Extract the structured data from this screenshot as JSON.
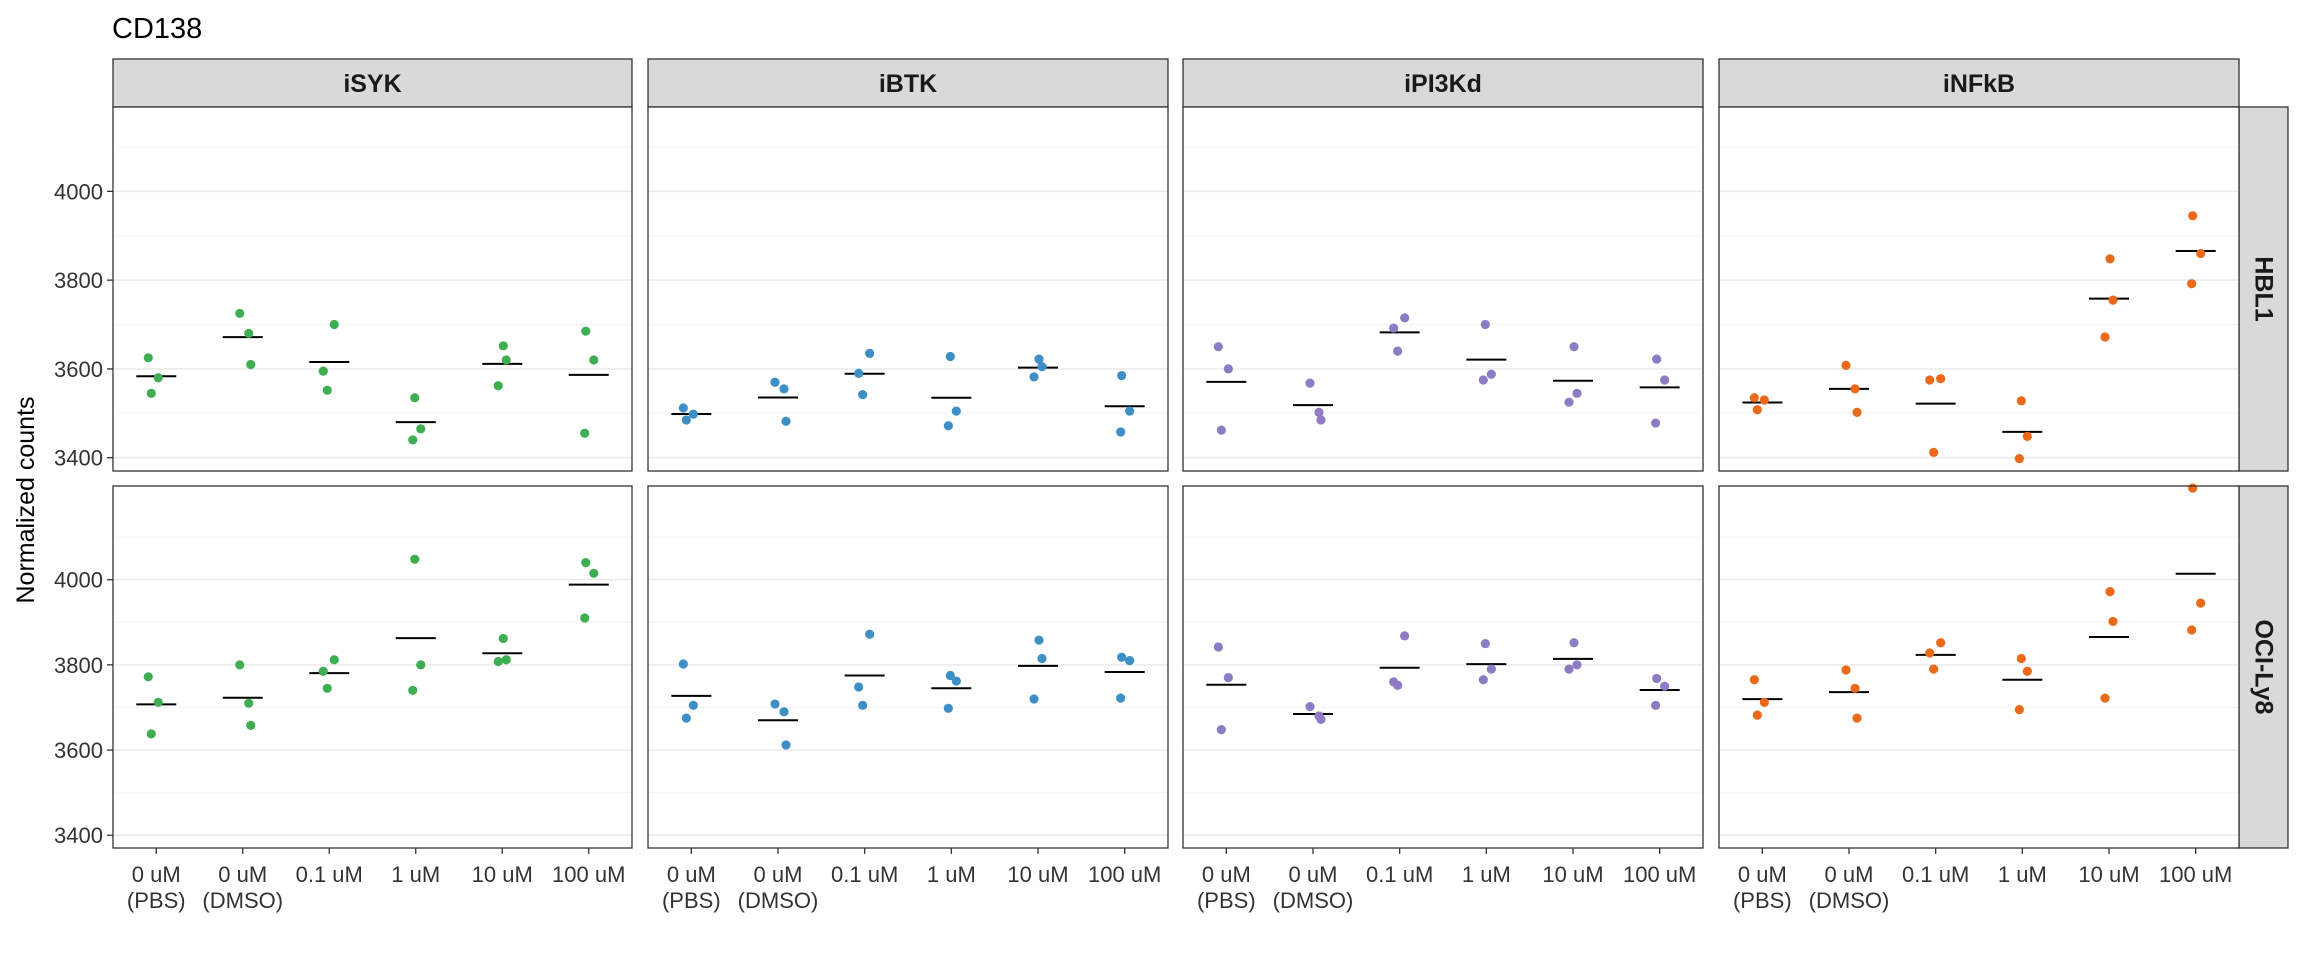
{
  "chart_data": {
    "type": "scatter",
    "title": "CD138",
    "ylabel": "Normalized counts",
    "xlabel": "",
    "categories": [
      [
        "0 uM",
        "(PBS)"
      ],
      [
        "0 uM",
        "(DMSO)"
      ],
      [
        "0.1 uM"
      ],
      [
        "1 uM"
      ],
      [
        "10 uM"
      ],
      [
        "100 uM"
      ]
    ],
    "facet_cols": [
      "iSYK",
      "iBTK",
      "iPI3Kd",
      "iNFkB"
    ],
    "facet_rows": [
      "HBL1",
      "OCI-Ly8"
    ],
    "colors": {
      "iSYK": "#3fae53",
      "iBTK": "#3d8fc6",
      "iPI3Kd": "#8d7cc3",
      "iNFkB": "#ea6a1a"
    },
    "y_ticks": [
      3400,
      3600,
      3800,
      4000
    ],
    "y_ranges": {
      "HBL1": [
        3370,
        4190
      ],
      "OCI-Ly8": [
        3370,
        4220
      ]
    },
    "grid": true,
    "marker": "mean line",
    "panels": [
      {
        "row": "HBL1",
        "col": "iSYK",
        "points": [
          [
            3625,
            3580,
            3545
          ],
          [
            3725,
            3680,
            3610
          ],
          [
            3700,
            3595,
            3552
          ],
          [
            3535,
            3465,
            3440
          ],
          [
            3652,
            3620,
            3562
          ],
          [
            3685,
            3620,
            3455
          ]
        ]
      },
      {
        "row": "HBL1",
        "col": "iBTK",
        "points": [
          [
            3512,
            3498,
            3485
          ],
          [
            3570,
            3555,
            3482
          ],
          [
            3635,
            3590,
            3542
          ],
          [
            3628,
            3505,
            3472
          ],
          [
            3622,
            3605,
            3582
          ],
          [
            3585,
            3505,
            3458
          ]
        ]
      },
      {
        "row": "HBL1",
        "col": "iPI3Kd",
        "points": [
          [
            3650,
            3600,
            3462
          ],
          [
            3568,
            3502,
            3485
          ],
          [
            3715,
            3692,
            3640
          ],
          [
            3700,
            3588,
            3575
          ],
          [
            3650,
            3545,
            3525
          ],
          [
            3622,
            3575,
            3478
          ]
        ]
      },
      {
        "row": "HBL1",
        "col": "iNFkB",
        "points": [
          [
            3535,
            3530,
            3508
          ],
          [
            3608,
            3555,
            3502
          ],
          [
            3578,
            3575,
            3412
          ],
          [
            3528,
            3448,
            3398
          ],
          [
            3848,
            3755,
            3672
          ],
          [
            3945,
            3860,
            3792
          ]
        ]
      },
      {
        "row": "OCI-Ly8",
        "col": "iSYK",
        "points": [
          [
            3772,
            3712,
            3638
          ],
          [
            3800,
            3710,
            3658
          ],
          [
            3812,
            3785,
            3745
          ],
          [
            4048,
            3800,
            3740
          ],
          [
            3862,
            3812,
            3808
          ],
          [
            4040,
            4015,
            3910
          ]
        ]
      },
      {
        "row": "OCI-Ly8",
        "col": "iBTK",
        "points": [
          [
            3802,
            3705,
            3675
          ],
          [
            3708,
            3690,
            3612
          ],
          [
            3872,
            3748,
            3705
          ],
          [
            3775,
            3762,
            3698
          ],
          [
            3858,
            3815,
            3720
          ],
          [
            3818,
            3810,
            3722
          ]
        ]
      },
      {
        "row": "OCI-Ly8",
        "col": "iPI3Kd",
        "points": [
          [
            3842,
            3770,
            3648
          ],
          [
            3702,
            3680,
            3672
          ],
          [
            3868,
            3760,
            3752
          ],
          [
            3850,
            3790,
            3765
          ],
          [
            3852,
            3800,
            3790
          ],
          [
            3768,
            3750,
            3705
          ]
        ]
      },
      {
        "row": "OCI-Ly8",
        "col": "iNFkB",
        "points": [
          [
            3765,
            3712,
            3682
          ],
          [
            3788,
            3745,
            3675
          ],
          [
            3852,
            3828,
            3790
          ],
          [
            3815,
            3785,
            3695
          ],
          [
            3972,
            3902,
            3722
          ],
          [
            4215,
            3945,
            3882
          ]
        ]
      }
    ]
  }
}
